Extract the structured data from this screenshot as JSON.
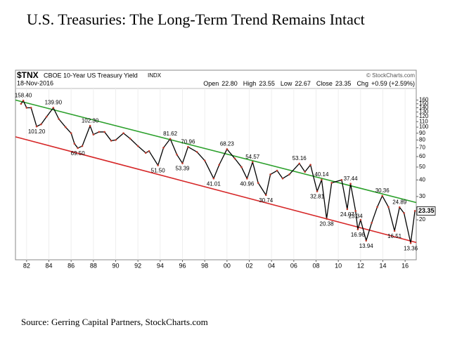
{
  "chart_data": {
    "type": "line",
    "title": "U.S. Treasuries: The Long-Term Trend Remains Intact",
    "source": "Source: Gerring Capital Partners, StockCharts.com",
    "header": {
      "symbol": "$TNX",
      "name": "CBOE 10-Year US Treasury Yield",
      "exchange": "INDX",
      "date": "18-Nov-2016",
      "copyright": "© StockCharts.com",
      "quote": [
        {
          "label": "Open",
          "value": "22.80"
        },
        {
          "label": "High",
          "value": "23.55"
        },
        {
          "label": "Low",
          "value": "22.67"
        },
        {
          "label": "Close",
          "value": "23.35"
        },
        {
          "label": "Chg",
          "value": "+0.59 (+2.59%)"
        }
      ]
    },
    "log_y": true,
    "xlim": [
      1981,
      2017
    ],
    "ylim": [
      10,
      165
    ],
    "xticks": [
      {
        "value": 1982,
        "label": "82"
      },
      {
        "value": 1984,
        "label": "84"
      },
      {
        "value": 1986,
        "label": "86"
      },
      {
        "value": 1988,
        "label": "88"
      },
      {
        "value": 1990,
        "label": "90"
      },
      {
        "value": 1992,
        "label": "92"
      },
      {
        "value": 1994,
        "label": "94"
      },
      {
        "value": 1996,
        "label": "96"
      },
      {
        "value": 1998,
        "label": "98"
      },
      {
        "value": 2000,
        "label": "00"
      },
      {
        "value": 2002,
        "label": "02"
      },
      {
        "value": 2004,
        "label": "04"
      },
      {
        "value": 2006,
        "label": "06"
      },
      {
        "value": 2008,
        "label": "08"
      },
      {
        "value": 2010,
        "label": "10"
      },
      {
        "value": 2012,
        "label": "12"
      },
      {
        "value": 2014,
        "label": "14"
      },
      {
        "value": 2016,
        "label": "16"
      }
    ],
    "yticks": [
      160,
      150,
      140,
      130,
      120,
      110,
      100,
      90,
      80,
      70,
      60,
      50,
      40,
      30,
      20
    ],
    "series": [
      {
        "color": "#000000",
        "marker_color": "#c0392b",
        "x": [
          1981.5,
          1981.7,
          1982.0,
          1982.4,
          1982.9,
          1983.3,
          1983.8,
          1984.4,
          1984.9,
          1985.5,
          1986.0,
          1986.3,
          1986.6,
          1987.0,
          1987.7,
          1988.0,
          1988.5,
          1989.0,
          1989.6,
          1990.0,
          1990.7,
          1991.3,
          1992.0,
          1992.7,
          1993.0,
          1993.8,
          1994.3,
          1994.9,
          1995.5,
          1996.0,
          1996.5,
          1997.3,
          1998.0,
          1998.8,
          1999.3,
          2000.0,
          2000.7,
          2001.3,
          2001.8,
          2002.3,
          2002.8,
          2003.5,
          2003.9,
          2004.5,
          2005.0,
          2005.6,
          2006.5,
          2007.0,
          2007.5,
          2008.1,
          2008.5,
          2008.95,
          2009.4,
          2010.3,
          2010.8,
          2011.1,
          2011.55,
          2011.75,
          2012.0,
          2012.5,
          2013.0,
          2013.5,
          2013.95,
          2014.5,
          2015.05,
          2015.5,
          2015.9,
          2016.5,
          2016.88
        ],
        "values": [
          150,
          158.4,
          140,
          140,
          101.2,
          105,
          120,
          139.9,
          115,
          100,
          90,
          75,
          69.5,
          72,
          102.3,
          88,
          92,
          92,
          79,
          80,
          90,
          82,
          72,
          64,
          66,
          51.5,
          70,
          81.62,
          62,
          53.39,
          70.96,
          65,
          56,
          41.01,
          52,
          68.23,
          58,
          50,
          40.96,
          54.57,
          38,
          30.74,
          44,
          47,
          41,
          44,
          53.16,
          46,
          52,
          32.81,
          40.14,
          20.38,
          38,
          40,
          24.07,
          37.44,
          23.34,
          16.96,
          20,
          13.94,
          19,
          25,
          30.36,
          25,
          16.51,
          24.89,
          22.5,
          13.36,
          23.35
        ],
        "value_labels": [
          null,
          "158.40",
          null,
          null,
          "101.20",
          null,
          null,
          "139.90",
          null,
          null,
          null,
          null,
          "69.50",
          null,
          "102.30",
          null,
          null,
          null,
          null,
          null,
          null,
          null,
          null,
          null,
          null,
          "51.50",
          null,
          "81.62",
          null,
          "53.39",
          "70.96",
          null,
          null,
          "41.01",
          null,
          "68.23",
          null,
          null,
          "40.96",
          "54.57",
          null,
          "30.74",
          null,
          null,
          null,
          null,
          "53.16",
          null,
          null,
          "32.81",
          "40.14",
          "20.38",
          null,
          null,
          "24.07",
          "37.44",
          "23.34",
          "16.96",
          null,
          "13.94",
          null,
          null,
          "30.36",
          null,
          "16.51",
          "24.89",
          null,
          "13.36",
          null
        ]
      }
    ],
    "trendlines": [
      {
        "color": "#2ca02c",
        "x": [
          1981,
          2017
        ],
        "values": [
          160,
          27
        ]
      },
      {
        "color": "#d62728",
        "x": [
          1981,
          2017
        ],
        "values": [
          84.5,
          13.5
        ]
      }
    ]
  }
}
